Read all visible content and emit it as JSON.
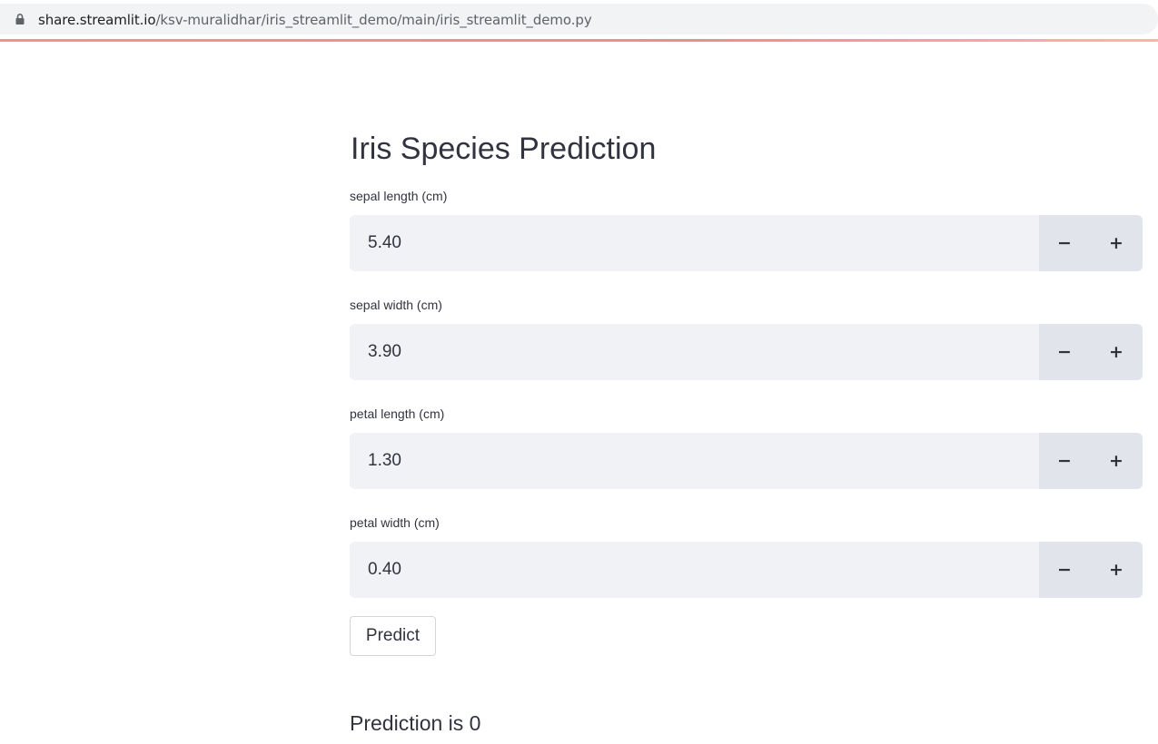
{
  "browser": {
    "url_host": "share.streamlit.io",
    "url_path": "/ksv-muralidhar/iris_streamlit_demo/main/iris_streamlit_demo.py"
  },
  "app": {
    "title": "Iris Species Prediction",
    "fields": [
      {
        "label": "sepal length (cm)",
        "value": "5.40",
        "minus": "−",
        "plus": "+"
      },
      {
        "label": "sepal width (cm)",
        "value": "3.90",
        "minus": "−",
        "plus": "+"
      },
      {
        "label": "petal length (cm)",
        "value": "1.30",
        "minus": "−",
        "plus": "+"
      },
      {
        "label": "petal width (cm)",
        "value": "0.40",
        "minus": "−",
        "plus": "+"
      }
    ],
    "predict_label": "Predict",
    "result_text": "Prediction is 0"
  },
  "colors": {
    "input_bg": "#f0f2f6",
    "stepper_bg": "#e1e4ea",
    "text": "#31333f",
    "progress_accent": "#f28b82"
  },
  "icons": {
    "lock": "lock-icon",
    "minus": "minus-icon",
    "plus": "plus-icon"
  }
}
